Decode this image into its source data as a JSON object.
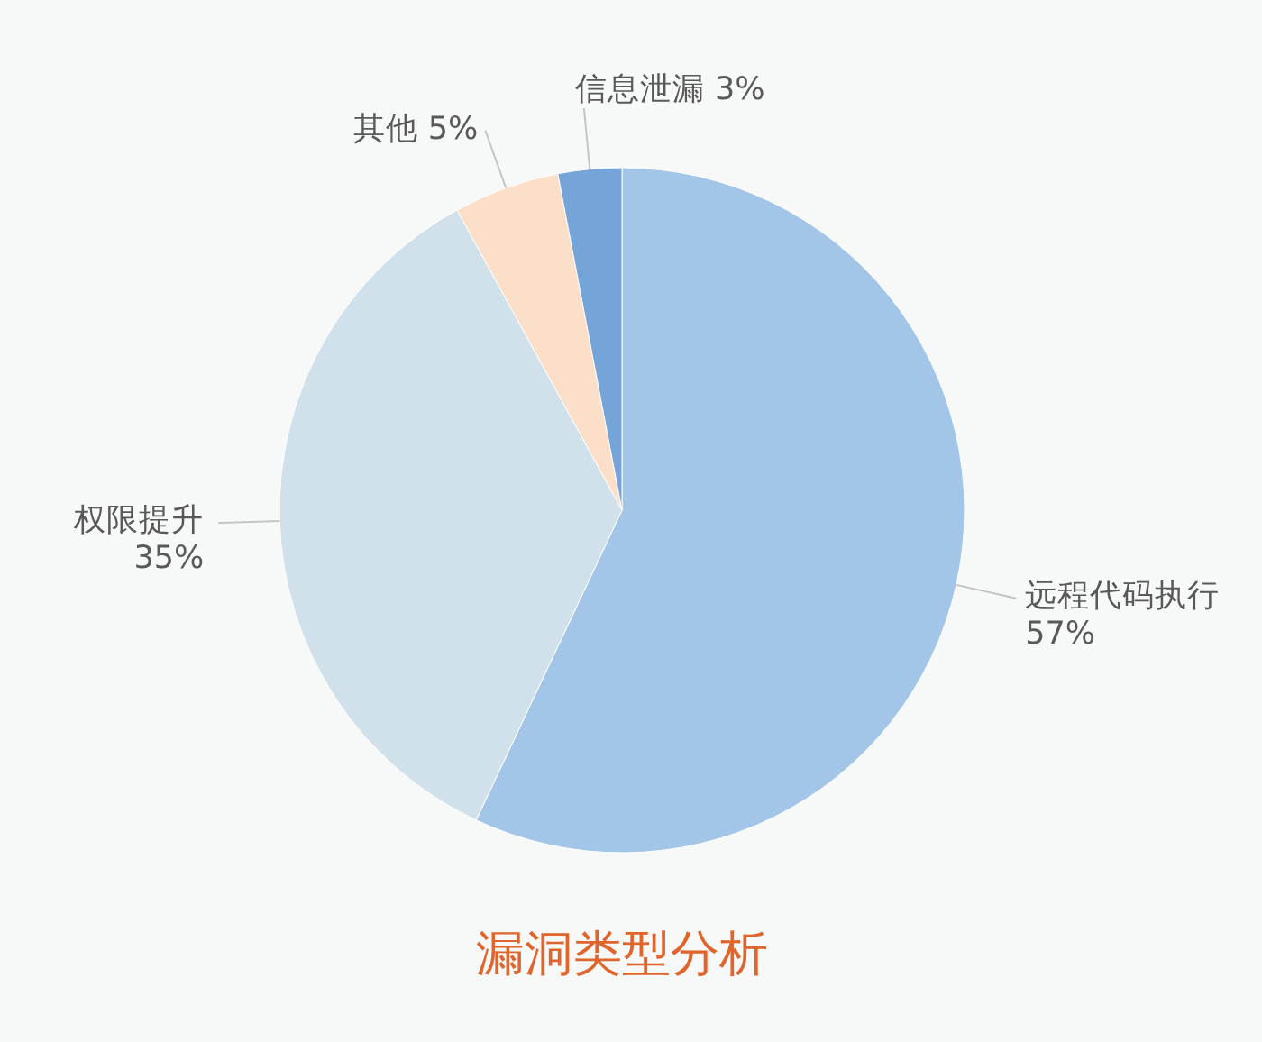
{
  "chart_data": {
    "type": "pie",
    "title": "漏洞类型分析",
    "categories": [
      "远程代码执行",
      "权限提升",
      "其他",
      "信息泄漏"
    ],
    "values": [
      57,
      35,
      5,
      3
    ],
    "colors": [
      "#a3c6e8",
      "#d0e1ec",
      "#fbdfc9",
      "#74a4d8"
    ],
    "value_labels": [
      "57%",
      "35%",
      "5%",
      "3%"
    ]
  }
}
